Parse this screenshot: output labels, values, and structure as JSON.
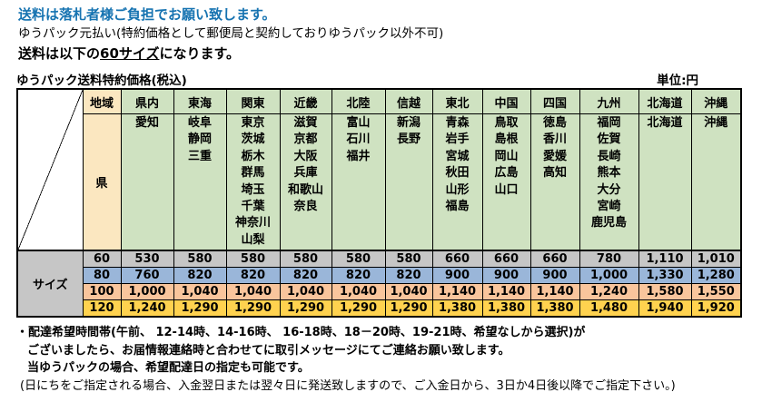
{
  "page": {
    "notice_line1": "送料は落札者様ご負担でお願い致します。",
    "notice_line2": "ゆうパック元払い(特約価格として郵便局と契約しておりゆうパック以外不可)",
    "notice_line3_prefix": "送料は以下の",
    "notice_line3_underline": "60サイズ",
    "notice_line3_suffix": "になります。",
    "table_title": "ゆうパック送料特約価格(税込)",
    "unit_label": "単位:円"
  },
  "table": {
    "region_row_label": "地域",
    "pref_row_label": "県",
    "size_col_label": "サイズ",
    "columns": [
      {
        "region": "県内",
        "prefectures": [
          "愛知"
        ]
      },
      {
        "region": "東海",
        "prefectures": [
          "岐阜",
          "静岡",
          "三重"
        ]
      },
      {
        "region": "関東",
        "prefectures": [
          "東京",
          "茨城",
          "栃木",
          "群馬",
          "埼玉",
          "千葉",
          "神奈川",
          "山梨"
        ]
      },
      {
        "region": "近畿",
        "prefectures": [
          "滋賀",
          "京都",
          "大阪",
          "兵庫",
          "和歌山",
          "奈良"
        ]
      },
      {
        "region": "北陸",
        "prefectures": [
          "富山",
          "石川",
          "福井"
        ]
      },
      {
        "region": "信越",
        "prefectures": [
          "新潟",
          "長野"
        ]
      },
      {
        "region": "東北",
        "prefectures": [
          "青森",
          "岩手",
          "宮城",
          "秋田",
          "山形",
          "福島"
        ]
      },
      {
        "region": "中国",
        "prefectures": [
          "鳥取",
          "島根",
          "岡山",
          "広島",
          "山口"
        ]
      },
      {
        "region": "四国",
        "prefectures": [
          "徳島",
          "香川",
          "愛媛",
          "高知"
        ]
      },
      {
        "region": "九州",
        "prefectures": [
          "福岡",
          "佐賀",
          "長崎",
          "熊本",
          "大分",
          "宮崎",
          "鹿児島"
        ]
      },
      {
        "region": "北海道",
        "prefectures": [
          "北海道"
        ]
      },
      {
        "region": "沖縄",
        "prefectures": [
          "沖縄"
        ]
      }
    ],
    "size_rows": [
      {
        "size": "60",
        "color": "#C6C6C6",
        "values": [
          "530",
          "580",
          "580",
          "580",
          "580",
          "580",
          "660",
          "660",
          "660",
          "780",
          "1,110",
          "1,010"
        ]
      },
      {
        "size": "80",
        "color": "#9AB6D9",
        "values": [
          "760",
          "820",
          "820",
          "820",
          "820",
          "820",
          "900",
          "900",
          "900",
          "1,000",
          "1,330",
          "1,280"
        ]
      },
      {
        "size": "100",
        "color": "#F9C59C",
        "values": [
          "1,000",
          "1,040",
          "1,040",
          "1,040",
          "1,040",
          "1,040",
          "1,140",
          "1,140",
          "1,140",
          "1,240",
          "1,580",
          "1,550"
        ]
      },
      {
        "size": "120",
        "color": "#FFD24F",
        "values": [
          "1,240",
          "1,290",
          "1,290",
          "1,290",
          "1,290",
          "1,290",
          "1,380",
          "1,380",
          "1,380",
          "1,480",
          "1,940",
          "1,920"
        ]
      }
    ]
  },
  "footer": {
    "line1": "・配達希望時間帯(午前、 12-14時、14-16時、 16-18時、18－20時、19-21時、希望なしから選択)が",
    "line2": "ございましたら、お届情報連絡時と合わせてに取引メッセージにてご連絡お願い致します。",
    "line3": "当ゆうパックの場合、希望配達日の指定も可能です。",
    "line4": "(日にちをご指定される場合、入金翌日または翌々日に発送致しますので、ご入金日から、3日か4日後以降でご指定下さい。)"
  },
  "colors": {
    "notice_blue": "#1673B1",
    "header_green": "#CFE2C1",
    "label_cream": "#FBE7C0",
    "size60_gray": "#C6C6C6",
    "size80_blue": "#9AB6D9",
    "size100_peach": "#F9C59C",
    "size120_gold": "#FFD24F"
  }
}
